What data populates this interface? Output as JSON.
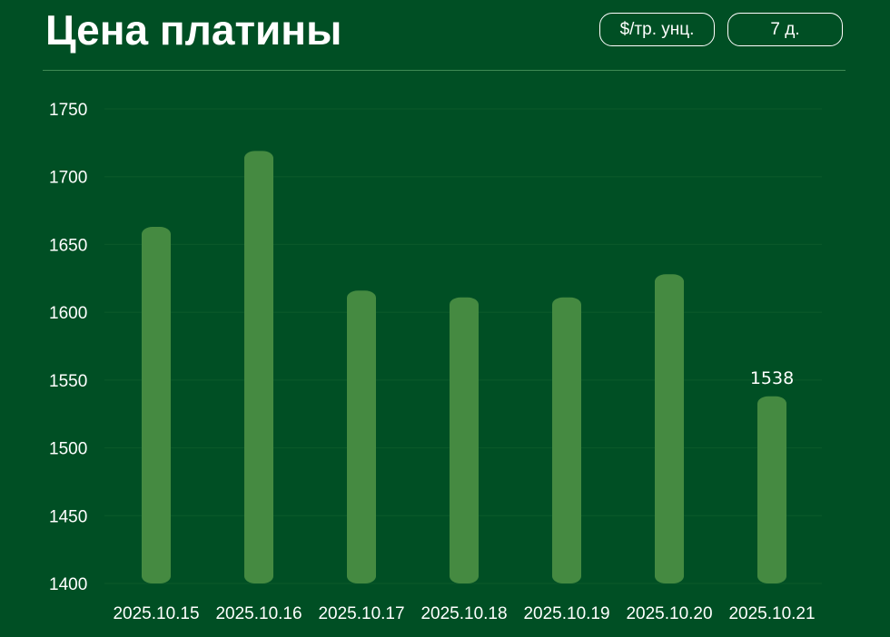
{
  "header": {
    "title": "Цена платины",
    "unit_button": "$/тр. унц.",
    "range_button": "7 д."
  },
  "colors": {
    "background": "#004f24",
    "bar": "#458a41",
    "gridline": "#0c5a2a",
    "divider": "#3f8a55"
  },
  "chart_data": {
    "type": "bar",
    "categories": [
      "2025.10.15",
      "2025.10.16",
      "2025.10.17",
      "2025.10.18",
      "2025.10.19",
      "2025.10.20",
      "2025.10.21"
    ],
    "values": [
      1663,
      1719,
      1616,
      1611,
      1611,
      1628,
      1538
    ],
    "ylim": [
      1400,
      1750
    ],
    "yticks": [
      1400,
      1450,
      1500,
      1550,
      1600,
      1650,
      1700,
      1750
    ],
    "grid": true,
    "data_labels": [
      {
        "index": 6,
        "text": "1538"
      }
    ]
  }
}
